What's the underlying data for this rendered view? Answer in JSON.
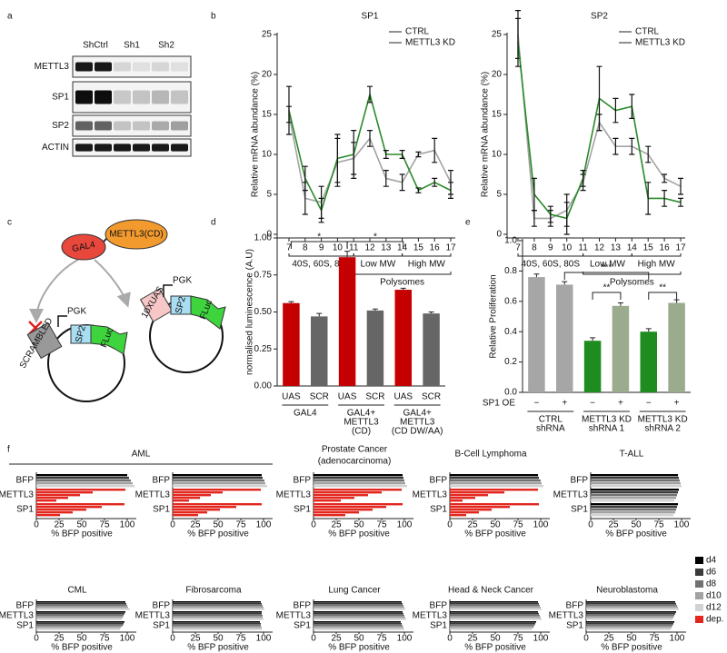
{
  "panel_labels": [
    "a",
    "b",
    "c",
    "d",
    "e",
    "f"
  ],
  "blot": {
    "columns": [
      "ShCtrl",
      "Sh1",
      "Sh2"
    ],
    "rows": [
      "METTL3",
      "SP1",
      "SP2",
      "ACTIN"
    ]
  },
  "diagram": {
    "gal4": "GAL4",
    "mettl3": "METTL3(CD)",
    "left_plasmid": {
      "promoter": "PGK",
      "site": "SCRAMBLED",
      "gene": "SP2",
      "reporter": "FLuc"
    },
    "right_plasmid": {
      "promoter": "PGK",
      "site": "10XUAS",
      "gene": "SP2",
      "reporter": "FLuc"
    }
  },
  "chart_data": [
    {
      "type": "line",
      "title": "SP1",
      "ylabel": "Relative mRNA abundance (%)",
      "categories": [
        "7",
        "8",
        "9",
        "10",
        "11",
        "12",
        "13",
        "14",
        "15",
        "16",
        "17"
      ],
      "x_groups": [
        "40S, 60S, 80S",
        "Low MW",
        "High MW"
      ],
      "x_supergroup": "Polysomes",
      "ylim": [
        0,
        25
      ],
      "yticks": [
        0,
        5,
        10,
        15,
        20,
        25
      ],
      "legend": "upper right",
      "series": [
        {
          "name": "CTRL",
          "color": "#a3a3a3",
          "values": [
            15,
            4.5,
            4,
            9,
            9.5,
            12,
            7,
            6.5,
            10,
            10.5,
            6.5
          ],
          "errors": [
            1,
            2,
            2,
            3,
            2,
            1,
            1,
            1,
            0.3,
            1.5,
            1.5
          ]
        },
        {
          "name": "METTL3 KD",
          "color": "#2a8a2a",
          "values": [
            15.5,
            7,
            3,
            9.5,
            10,
            17.5,
            10,
            10,
            5.5,
            6.5,
            5.5
          ],
          "errors": [
            3,
            1.5,
            1.5,
            3,
            3,
            1,
            0.5,
            0.5,
            0.3,
            0.5,
            1
          ]
        }
      ]
    },
    {
      "type": "line",
      "title": "SP2",
      "ylabel": "Relative mRNA abundance (%)",
      "categories": [
        "7",
        "8",
        "9",
        "10",
        "11",
        "12",
        "13",
        "14",
        "15",
        "16",
        "17"
      ],
      "x_groups": [
        "40S, 60S, 80S",
        "Low MW",
        "High MW"
      ],
      "x_supergroup": "Polysomes",
      "ylim": [
        0,
        25
      ],
      "yticks": [
        0,
        5,
        10,
        15,
        20,
        25
      ],
      "legend": "upper right",
      "series": [
        {
          "name": "CTRL",
          "color": "#a3a3a3",
          "values": [
            25,
            2,
            2,
            3,
            6.5,
            14,
            11,
            11,
            10,
            7,
            6
          ],
          "errors": [
            3,
            1,
            1,
            2,
            1,
            1,
            1,
            1,
            1,
            0.5,
            1
          ]
        },
        {
          "name": "METTL3 KD",
          "color": "#2a8a2a",
          "values": [
            24,
            5,
            2.5,
            2,
            7,
            17,
            15.5,
            16,
            4.5,
            4.5,
            4
          ],
          "errors": [
            3,
            2,
            1,
            2,
            1,
            4,
            1.5,
            1.5,
            2,
            1,
            0.5
          ]
        }
      ]
    },
    {
      "type": "bar",
      "ylabel": "normalised luminescence (A.U)",
      "categories": [
        "UAS",
        "SCR",
        "UAS",
        "SCR",
        "UAS",
        "SCR"
      ],
      "values": [
        0.56,
        0.47,
        0.87,
        0.51,
        0.65,
        0.49
      ],
      "errors": [
        0.01,
        0.02,
        0.04,
        0.01,
        0.01,
        0.01
      ],
      "colors": [
        "#c40000",
        "#666666",
        "#c40000",
        "#666666",
        "#c40000",
        "#666666"
      ],
      "ylim": [
        0,
        1
      ],
      "yticks": [
        {
          "value": 0,
          "label": "0.00"
        },
        {
          "value": 0.25,
          "label": "0.25"
        },
        {
          "value": 0.5,
          "label": "0.50"
        },
        {
          "value": 0.75,
          "label": "0.75"
        },
        {
          "value": 1,
          "label": "1.00"
        }
      ],
      "groups": [
        [
          "GAL4"
        ],
        [
          "GAL4+",
          "METTL3",
          "(CD)"
        ],
        [
          "GAL4+",
          "METTL3",
          "(CD DW/AA)"
        ]
      ],
      "significance": [
        "*",
        "*"
      ]
    },
    {
      "type": "bar",
      "ylabel": "Relative  Proliferation",
      "row_label": "SP1 OE",
      "categories": [
        "−",
        "+",
        "−",
        "+",
        "−",
        "+"
      ],
      "values": [
        0.76,
        0.71,
        0.34,
        0.57,
        0.4,
        0.59
      ],
      "errors": [
        0.02,
        0.02,
        0.02,
        0.02,
        0.02,
        0.02
      ],
      "colors": [
        "#a6a6a6",
        "#a6a6a6",
        "#1e8c1e",
        "#9bac8e",
        "#1e8c1e",
        "#9bac8e"
      ],
      "ylim": [
        0,
        1
      ],
      "yticks": [
        {
          "value": 0,
          "label": "0.0"
        },
        {
          "value": 0.2,
          "label": "0.2"
        },
        {
          "value": 0.4,
          "label": "0.4"
        },
        {
          "value": 0.6,
          "label": "0.6"
        },
        {
          "value": 0.8,
          "label": "0.8"
        },
        {
          "value": 1,
          "label": "1.0"
        }
      ],
      "groups": [
        [
          "CTRL",
          "shRNA"
        ],
        [
          "METTL3 KD",
          "shRNA 1"
        ],
        [
          "METTL3 KD",
          "shRNA 2"
        ]
      ],
      "significance": [
        "***",
        "**",
        "**"
      ]
    },
    {
      "type": "hbar-grid",
      "xlabel": "% BFP positive",
      "categories": [
        "BFP",
        "METTL3",
        "SP1"
      ],
      "xlim": [
        0,
        110
      ],
      "xticks": [
        0,
        25,
        50,
        75,
        100
      ],
      "legend": [
        {
          "name": "d4",
          "color": "#000000"
        },
        {
          "name": "d6",
          "color": "#3a3a3a"
        },
        {
          "name": "d8",
          "color": "#717171"
        },
        {
          "name": "d10",
          "color": "#a2a2a2"
        },
        {
          "name": "d12",
          "color": "#d2d2d2"
        },
        {
          "name": "dep.",
          "color": "#e3261e"
        }
      ],
      "panels": [
        {
          "title": [
            "AML"
          ],
          "values": [
            [
              100,
              102,
              104,
              106,
              108
            ],
            [
              98,
              62,
              48,
              35,
              22
            ],
            [
              97,
              72,
              55,
              40,
              26
            ]
          ],
          "dependent": [
            false,
            true,
            true
          ]
        },
        {
          "values": [
            [
              98,
              99,
              101,
              102,
              104
            ],
            [
              97,
              55,
              42,
              30,
              18
            ],
            [
              98,
              70,
              52,
              38,
              28
            ]
          ],
          "dependent": [
            false,
            true,
            true
          ]
        },
        {
          "title": [
            "Prostate Cancer",
            "(adenocarcinoma)"
          ],
          "values": [
            [
              98,
              99,
              100,
              101,
              103
            ],
            [
              97,
              75,
              60,
              45,
              30
            ],
            [
              98,
              80,
              65,
              50,
              35
            ]
          ],
          "dependent": [
            false,
            true,
            true
          ]
        },
        {
          "title": [
            "B-Cell Lymphoma"
          ],
          "values": [
            [
              97,
              98,
              100,
              101,
              103
            ],
            [
              97,
              60,
              42,
              28,
              14
            ],
            [
              98,
              66,
              46,
              32,
              18
            ]
          ],
          "dependent": [
            false,
            true,
            true
          ]
        },
        {
          "title": [
            "T-ALL"
          ],
          "values": [
            [
              96,
              97,
              98,
              99,
              100
            ],
            [
              97,
              96,
              95,
              94,
              92
            ],
            [
              96,
              95,
              94,
              93,
              91
            ]
          ],
          "dependent": [
            false,
            false,
            false
          ]
        },
        {
          "title": [
            "CML"
          ],
          "values": [
            [
              98,
              99,
              100,
              101,
              103
            ],
            [
              98,
              97,
              96,
              95,
              94
            ],
            [
              97,
              96,
              95,
              93,
              92
            ]
          ],
          "dependent": [
            false,
            false,
            false
          ]
        },
        {
          "title": [
            "Fibrosarcoma"
          ],
          "values": [
            [
              97,
              98,
              99,
              100,
              101
            ],
            [
              98,
              98,
              99,
              99,
              100
            ],
            [
              96,
              97,
              97,
              98,
              98
            ]
          ],
          "dependent": [
            false,
            false,
            false
          ]
        },
        {
          "title": [
            "Lung Cancer"
          ],
          "values": [
            [
              97,
              98,
              99,
              100,
              101
            ],
            [
              98,
              99,
              100,
              101,
              102
            ],
            [
              96,
              97,
              98,
              99,
              100
            ]
          ],
          "dependent": [
            false,
            false,
            false
          ]
        },
        {
          "title": [
            "Head & Neck Cancer"
          ],
          "values": [
            [
              97,
              98,
              99,
              100,
              101
            ],
            [
              97,
              98,
              99,
              100,
              101
            ],
            [
              95,
              94,
              93,
              92,
              90
            ]
          ],
          "dependent": [
            false,
            false,
            false
          ]
        },
        {
          "title": [
            "Neuroblastoma"
          ],
          "values": [
            [
              98,
              99,
              100,
              101,
              102
            ],
            [
              99,
              98,
              97,
              96,
              95
            ],
            [
              97,
              96,
              95,
              94,
              93
            ]
          ],
          "dependent": [
            false,
            false,
            false
          ]
        }
      ]
    }
  ]
}
